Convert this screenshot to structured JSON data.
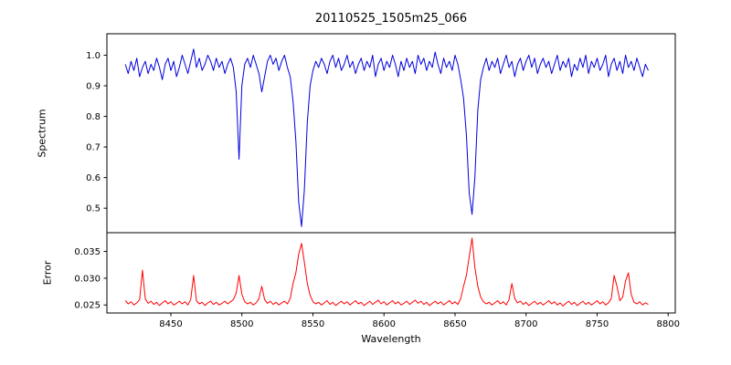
{
  "chart_data": {
    "type": "line",
    "title": "20110525_1505m25_066",
    "xlabel": "Wavelength",
    "x_start": 8418,
    "x_step": 2,
    "xlim": [
      8405,
      8805
    ],
    "x_tick_values": [
      8450,
      8500,
      8550,
      8600,
      8650,
      8700,
      8750,
      8800
    ],
    "x_tick_labels": [
      "8450",
      "8500",
      "8550",
      "8600",
      "8650",
      "8700",
      "8750",
      "8800"
    ],
    "grid": false,
    "legend": "none",
    "panels": [
      {
        "name": "spectrum",
        "ylabel": "Spectrum",
        "color": "#0000dd",
        "ylim": [
          0.42,
          1.07
        ],
        "y_tick_values": [
          0.5,
          0.6,
          0.7,
          0.8,
          0.9,
          1.0
        ],
        "y_tick_labels": [
          "0.5",
          "0.6",
          "0.7",
          "0.8",
          "0.9",
          "1.0"
        ],
        "features": "absorption lines near 8498 (min 0.66), 8542 (min 0.44), 8662 (min 0.48); noisy continuum near 0.97",
        "values": [
          0.97,
          0.94,
          0.98,
          0.95,
          0.99,
          0.93,
          0.96,
          0.98,
          0.94,
          0.97,
          0.95,
          0.99,
          0.96,
          0.92,
          0.97,
          0.99,
          0.95,
          0.98,
          0.93,
          0.96,
          1.0,
          0.97,
          0.94,
          0.98,
          1.02,
          0.96,
          0.99,
          0.95,
          0.97,
          1.0,
          0.98,
          0.95,
          0.99,
          0.96,
          0.98,
          0.94,
          0.97,
          0.99,
          0.96,
          0.88,
          0.66,
          0.9,
          0.97,
          0.99,
          0.96,
          1.0,
          0.97,
          0.94,
          0.88,
          0.93,
          0.98,
          1.0,
          0.97,
          0.99,
          0.95,
          0.98,
          1.0,
          0.96,
          0.93,
          0.85,
          0.72,
          0.52,
          0.44,
          0.56,
          0.78,
          0.9,
          0.95,
          0.98,
          0.96,
          0.99,
          0.97,
          0.94,
          0.98,
          1.0,
          0.96,
          0.99,
          0.95,
          0.97,
          1.0,
          0.96,
          0.98,
          0.94,
          0.97,
          0.99,
          0.95,
          0.98,
          0.96,
          1.0,
          0.93,
          0.97,
          0.99,
          0.95,
          0.98,
          0.96,
          1.0,
          0.97,
          0.93,
          0.98,
          0.95,
          0.99,
          0.96,
          0.98,
          0.94,
          1.0,
          0.97,
          0.99,
          0.95,
          0.98,
          0.96,
          1.01,
          0.97,
          0.94,
          0.99,
          0.96,
          0.98,
          0.95,
          1.0,
          0.97,
          0.92,
          0.86,
          0.74,
          0.55,
          0.48,
          0.6,
          0.82,
          0.92,
          0.96,
          0.99,
          0.95,
          0.98,
          0.96,
          0.99,
          0.94,
          0.97,
          1.0,
          0.96,
          0.98,
          0.93,
          0.97,
          0.99,
          0.95,
          0.98,
          1.0,
          0.96,
          0.99,
          0.94,
          0.97,
          0.99,
          0.96,
          0.98,
          0.94,
          0.97,
          1.0,
          0.95,
          0.98,
          0.96,
          0.99,
          0.93,
          0.97,
          0.95,
          0.99,
          0.96,
          1.0,
          0.94,
          0.98,
          0.96,
          0.99,
          0.95,
          0.97,
          1.0,
          0.93,
          0.97,
          0.99,
          0.95,
          0.98,
          0.94,
          1.0,
          0.96,
          0.98,
          0.95,
          0.99,
          0.96,
          0.93,
          0.97,
          0.95
        ]
      },
      {
        "name": "error",
        "ylabel": "Error",
        "color": "#ff0000",
        "ylim": [
          0.0235,
          0.0385
        ],
        "y_tick_values": [
          0.025,
          0.03,
          0.035
        ],
        "y_tick_labels": [
          "0.025",
          "0.030",
          "0.035"
        ],
        "features": "baseline near 0.0255 with spikes at 8430, 8466, 8498, 8542 (0.0365), 8662 (0.0375), 8690, 8762, 8772",
        "values": [
          0.0258,
          0.0252,
          0.0256,
          0.025,
          0.0254,
          0.026,
          0.0315,
          0.0262,
          0.0253,
          0.0257,
          0.0251,
          0.0255,
          0.0249,
          0.0254,
          0.0258,
          0.0252,
          0.0256,
          0.025,
          0.0253,
          0.0257,
          0.0252,
          0.0256,
          0.025,
          0.026,
          0.0305,
          0.0258,
          0.0252,
          0.0255,
          0.0249,
          0.0254,
          0.0257,
          0.0251,
          0.0255,
          0.025,
          0.0253,
          0.0257,
          0.0252,
          0.0256,
          0.026,
          0.0272,
          0.0305,
          0.027,
          0.0256,
          0.0252,
          0.0255,
          0.025,
          0.0254,
          0.0262,
          0.0285,
          0.026,
          0.0253,
          0.0257,
          0.0251,
          0.0255,
          0.025,
          0.0254,
          0.0257,
          0.0252,
          0.0262,
          0.029,
          0.031,
          0.0345,
          0.0365,
          0.033,
          0.029,
          0.0268,
          0.0256,
          0.0252,
          0.0255,
          0.025,
          0.0254,
          0.0258,
          0.0251,
          0.0255,
          0.0249,
          0.0253,
          0.0257,
          0.0252,
          0.0256,
          0.025,
          0.0254,
          0.0258,
          0.0252,
          0.0255,
          0.0249,
          0.0253,
          0.0257,
          0.0251,
          0.0255,
          0.0259,
          0.0252,
          0.0256,
          0.025,
          0.0254,
          0.0258,
          0.0252,
          0.0256,
          0.025,
          0.0253,
          0.0257,
          0.0251,
          0.0255,
          0.0259,
          0.0253,
          0.0257,
          0.0251,
          0.0255,
          0.0249,
          0.0253,
          0.0257,
          0.0252,
          0.0256,
          0.025,
          0.0254,
          0.0258,
          0.0252,
          0.0256,
          0.0251,
          0.0262,
          0.0285,
          0.0305,
          0.034,
          0.0375,
          0.032,
          0.0285,
          0.0265,
          0.0256,
          0.0252,
          0.0255,
          0.025,
          0.0254,
          0.0258,
          0.0252,
          0.0256,
          0.025,
          0.026,
          0.029,
          0.0262,
          0.0254,
          0.0257,
          0.0251,
          0.0255,
          0.0249,
          0.0253,
          0.0257,
          0.0251,
          0.0255,
          0.025,
          0.0254,
          0.0258,
          0.0252,
          0.0256,
          0.025,
          0.0254,
          0.0248,
          0.0253,
          0.0257,
          0.0251,
          0.0255,
          0.0249,
          0.0253,
          0.0257,
          0.0251,
          0.0255,
          0.025,
          0.0254,
          0.0258,
          0.0252,
          0.0256,
          0.025,
          0.0254,
          0.0262,
          0.0305,
          0.0285,
          0.0258,
          0.0265,
          0.0295,
          0.031,
          0.027,
          0.0255,
          0.0252,
          0.0256,
          0.025,
          0.0254,
          0.0251
        ]
      }
    ]
  }
}
